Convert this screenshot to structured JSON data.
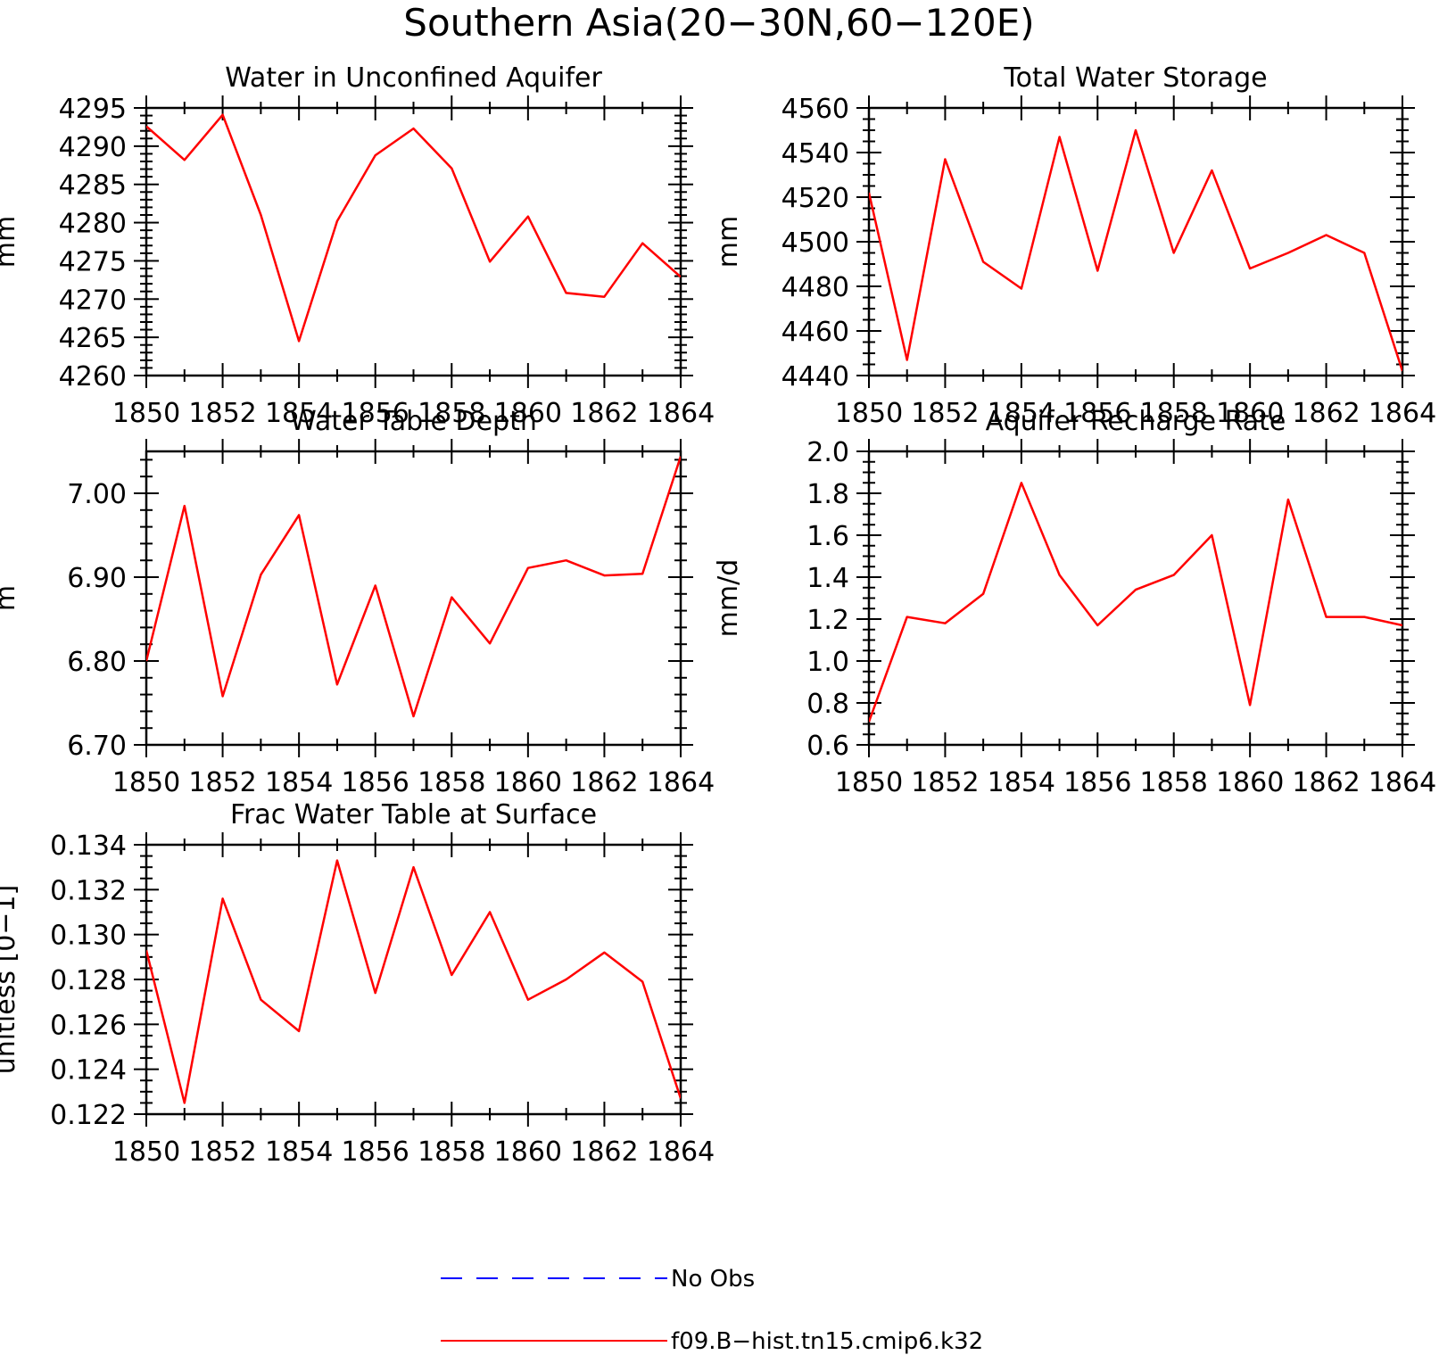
{
  "figure": {
    "title": "Southern Asia(20−30N,60−120E)",
    "line_color": "#ff0000",
    "obs_color": "#0000ff"
  },
  "legend": {
    "position": "bottom-center",
    "entries": [
      {
        "label": "No Obs",
        "style": "dashed",
        "color": "#0000ff"
      },
      {
        "label": "f09.B−hist.tn15.cmip6.k32",
        "style": "solid",
        "color": "#ff0000"
      }
    ]
  },
  "chart_data": [
    {
      "type": "line",
      "title": "Water in Unconfined Aquifer",
      "xlabel": "",
      "ylabel": "mm",
      "xlim": [
        1850,
        1864
      ],
      "ylim": [
        4260,
        4295
      ],
      "xticks": [
        "1850",
        "1852",
        "1854",
        "1856",
        "1858",
        "1860",
        "1862",
        "1864"
      ],
      "yticks": [
        "4260",
        "4265",
        "4270",
        "4275",
        "4280",
        "4285",
        "4290",
        "4295"
      ],
      "x": [
        1850,
        1851,
        1852,
        1853,
        1854,
        1855,
        1856,
        1857,
        1858,
        1859,
        1860,
        1861,
        1862,
        1863,
        1864
      ],
      "series": [
        {
          "name": "f09.B−hist.tn15.cmip6.k32",
          "values": [
            4292.6,
            4288.2,
            4294.1,
            4281.0,
            4264.5,
            4280.2,
            4288.8,
            4292.3,
            4287.1,
            4274.9,
            4280.8,
            4270.8,
            4270.3,
            4277.3,
            4272.9
          ]
        }
      ]
    },
    {
      "type": "line",
      "title": "Total Water Storage",
      "xlabel": "",
      "ylabel": "mm",
      "xlim": [
        1850,
        1864
      ],
      "ylim": [
        4440,
        4560
      ],
      "xticks": [
        "1850",
        "1852",
        "1854",
        "1856",
        "1858",
        "1860",
        "1862",
        "1864"
      ],
      "yticks": [
        "4440",
        "4460",
        "4480",
        "4500",
        "4520",
        "4540",
        "4560"
      ],
      "x": [
        1850,
        1851,
        1852,
        1853,
        1854,
        1855,
        1856,
        1857,
        1858,
        1859,
        1860,
        1861,
        1862,
        1863,
        1864
      ],
      "series": [
        {
          "name": "f09.B−hist.tn15.cmip6.k32",
          "values": [
            4522,
            4447,
            4537,
            4491,
            4479,
            4547,
            4487,
            4550,
            4495,
            4532,
            4488,
            4495,
            4503,
            4495,
            4442
          ]
        }
      ]
    },
    {
      "type": "line",
      "title": "Water Table Depth",
      "xlabel": "",
      "ylabel": "m",
      "xlim": [
        1850,
        1864
      ],
      "ylim": [
        6.7,
        7.05
      ],
      "xticks": [
        "1850",
        "1852",
        "1854",
        "1856",
        "1858",
        "1860",
        "1862",
        "1864"
      ],
      "yticks": [
        "6.70",
        "6.80",
        "6.90",
        "7.00"
      ],
      "x": [
        1850,
        1851,
        1852,
        1853,
        1854,
        1855,
        1856,
        1857,
        1858,
        1859,
        1860,
        1861,
        1862,
        1863,
        1864
      ],
      "series": [
        {
          "name": "f09.B−hist.tn15.cmip6.k32",
          "values": [
            6.8,
            6.985,
            6.758,
            6.903,
            6.974,
            6.772,
            6.89,
            6.734,
            6.876,
            6.821,
            6.911,
            6.92,
            6.902,
            6.904,
            7.044
          ]
        }
      ]
    },
    {
      "type": "line",
      "title": "Aquifer Recharge Rate",
      "xlabel": "",
      "ylabel": "mm/d",
      "xlim": [
        1850,
        1864
      ],
      "ylim": [
        0.6,
        2.0
      ],
      "xticks": [
        "1850",
        "1852",
        "1854",
        "1856",
        "1858",
        "1860",
        "1862",
        "1864"
      ],
      "yticks": [
        "0.6",
        "0.8",
        "1.0",
        "1.2",
        "1.4",
        "1.6",
        "1.8",
        "2.0"
      ],
      "x": [
        1850,
        1851,
        1852,
        1853,
        1854,
        1855,
        1856,
        1857,
        1858,
        1859,
        1860,
        1861,
        1862,
        1863,
        1864
      ],
      "series": [
        {
          "name": "f09.B−hist.tn15.cmip6.k32",
          "values": [
            0.71,
            1.21,
            1.18,
            1.32,
            1.85,
            1.41,
            1.17,
            1.34,
            1.41,
            1.6,
            0.79,
            1.77,
            1.21,
            1.21,
            1.17
          ]
        }
      ]
    },
    {
      "type": "line",
      "title": "Frac Water Table at Surface",
      "xlabel": "",
      "ylabel": "unitless [0−1]",
      "xlim": [
        1850,
        1864
      ],
      "ylim": [
        0.122,
        0.134
      ],
      "xticks": [
        "1850",
        "1852",
        "1854",
        "1856",
        "1858",
        "1860",
        "1862",
        "1864"
      ],
      "yticks": [
        "0.122",
        "0.124",
        "0.126",
        "0.128",
        "0.130",
        "0.132",
        "0.134"
      ],
      "x": [
        1850,
        1851,
        1852,
        1853,
        1854,
        1855,
        1856,
        1857,
        1858,
        1859,
        1860,
        1861,
        1862,
        1863,
        1864
      ],
      "series": [
        {
          "name": "f09.B−hist.tn15.cmip6.k32",
          "values": [
            0.1293,
            0.1225,
            0.1316,
            0.1271,
            0.1257,
            0.1333,
            0.1274,
            0.133,
            0.1282,
            0.131,
            0.1271,
            0.128,
            0.1292,
            0.1279,
            0.1227
          ]
        }
      ]
    }
  ]
}
